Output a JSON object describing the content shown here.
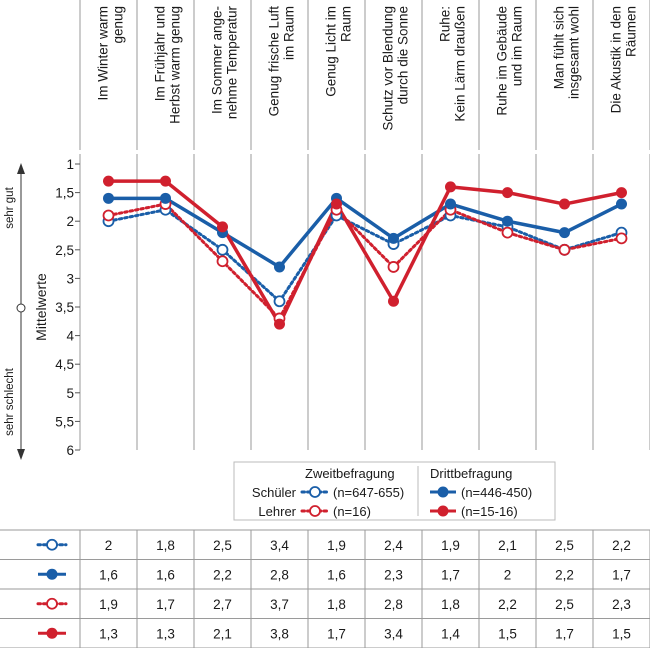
{
  "chart_data": {
    "type": "line",
    "ylabel": "Mittelwerte",
    "y_top_label": "sehr gut",
    "y_bottom_label": "sehr schlecht",
    "ylim": [
      1,
      6
    ],
    "yticks": [
      "1",
      "1,5",
      "2",
      "2,5",
      "3",
      "3,5",
      "4",
      "4,5",
      "5",
      "5,5",
      "6"
    ],
    "categories": [
      [
        "Im Winter warm",
        "genug"
      ],
      [
        "Im Frühjahr und",
        "Herbst warm genug"
      ],
      [
        "Im Sommer ange-",
        "nehme Temperatur"
      ],
      [
        "Genug frische Luft",
        "im Raum"
      ],
      [
        "Genug Licht im",
        "Raum"
      ],
      [
        "Schutz vor Blendung",
        "durch die Sonne"
      ],
      [
        "Ruhe:",
        "Kein Lärm draußen"
      ],
      [
        "Ruhe im Gebäude",
        "und im Raum"
      ],
      [
        "Man fühlt sich",
        "insgesamt wohl"
      ],
      [
        "Die Akustik in den",
        "Räumen"
      ]
    ],
    "series": [
      {
        "name": "Schüler Zweitbefragung",
        "color": "#1a5ea8",
        "style": "dotted",
        "marker": "open",
        "values": [
          2,
          1.8,
          2.5,
          3.4,
          1.9,
          2.4,
          1.9,
          2.1,
          2.5,
          2.2
        ],
        "labels": [
          "2",
          "1,8",
          "2,5",
          "3,4",
          "1,9",
          "2,4",
          "1,9",
          "2,1",
          "2,5",
          "2,2"
        ]
      },
      {
        "name": "Schüler Drittbefragung",
        "color": "#1a5ea8",
        "style": "solid",
        "marker": "filled",
        "values": [
          1.6,
          1.6,
          2.2,
          2.8,
          1.6,
          2.3,
          1.7,
          2,
          2.2,
          1.7
        ],
        "labels": [
          "1,6",
          "1,6",
          "2,2",
          "2,8",
          "1,6",
          "2,3",
          "1,7",
          "2",
          "2,2",
          "1,7"
        ]
      },
      {
        "name": "Lehrer Zweitbefragung",
        "color": "#d0202e",
        "style": "dotted",
        "marker": "open",
        "values": [
          1.9,
          1.7,
          2.7,
          3.7,
          1.8,
          2.8,
          1.8,
          2.2,
          2.5,
          2.3
        ],
        "labels": [
          "1,9",
          "1,7",
          "2,7",
          "3,7",
          "1,8",
          "2,8",
          "1,8",
          "2,2",
          "2,5",
          "2,3"
        ]
      },
      {
        "name": "Lehrer Drittbefragung",
        "color": "#d0202e",
        "style": "solid",
        "marker": "filled",
        "values": [
          1.3,
          1.3,
          2.1,
          3.8,
          1.7,
          3.4,
          1.4,
          1.5,
          1.7,
          1.5
        ],
        "labels": [
          "1,3",
          "1,3",
          "2,1",
          "3,8",
          "1,7",
          "3,4",
          "1,4",
          "1,5",
          "1,7",
          "1,5"
        ]
      }
    ],
    "legend": {
      "header_second": "Zweitbefragung",
      "header_third": "Drittbefragung",
      "row_students": "Schüler",
      "row_teachers": "Lehrer",
      "n_students_second": "(n=647-655)",
      "n_students_third": "(n=446-450)",
      "n_teachers_second": "(n=16)",
      "n_teachers_third": "(n=15-16)"
    }
  }
}
